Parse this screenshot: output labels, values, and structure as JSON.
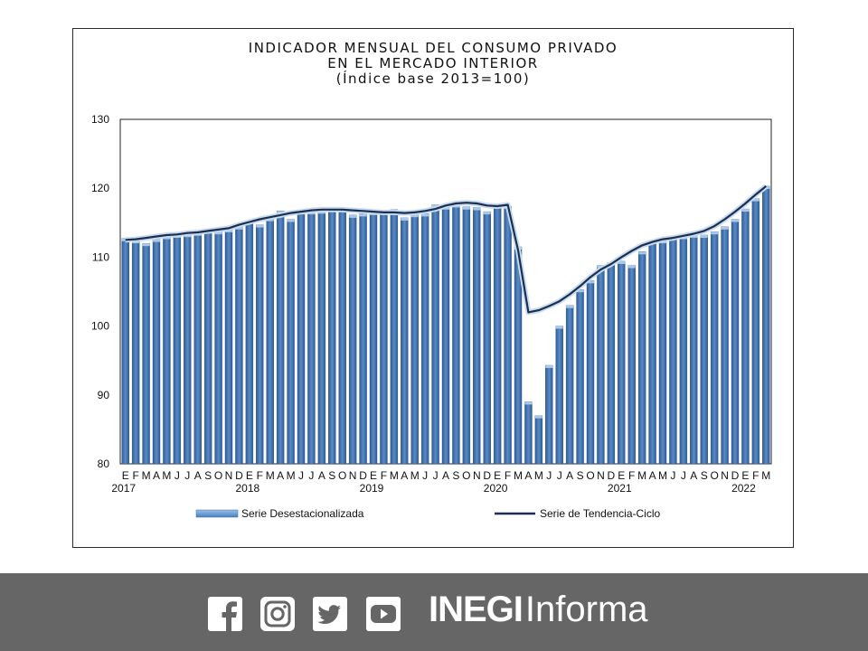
{
  "chart_data": {
    "type": "bar",
    "title_lines": [
      "INDICADOR MENSUAL DEL CONSUMO PRIVADO",
      "EN EL MERCADO INTERIOR",
      "(Índice base 2013=100)"
    ],
    "ylim": [
      80,
      130
    ],
    "yticks": [
      "130",
      "120",
      "110",
      "100",
      "90",
      "80"
    ],
    "month_letters": [
      "E",
      "F",
      "M",
      "A",
      "M",
      "J",
      "J",
      "A",
      "S",
      "O",
      "N",
      "D"
    ],
    "years": [
      "2017",
      "2018",
      "2019",
      "2020",
      "2021",
      "2022"
    ],
    "legend_position": "bottom",
    "categories": [
      "2017-01",
      "2017-02",
      "2017-03",
      "2017-04",
      "2017-05",
      "2017-06",
      "2017-07",
      "2017-08",
      "2017-09",
      "2017-10",
      "2017-11",
      "2017-12",
      "2018-01",
      "2018-02",
      "2018-03",
      "2018-04",
      "2018-05",
      "2018-06",
      "2018-07",
      "2018-08",
      "2018-09",
      "2018-10",
      "2018-11",
      "2018-12",
      "2019-01",
      "2019-02",
      "2019-03",
      "2019-04",
      "2019-05",
      "2019-06",
      "2019-07",
      "2019-08",
      "2019-09",
      "2019-10",
      "2019-11",
      "2019-12",
      "2020-01",
      "2020-02",
      "2020-03",
      "2020-04",
      "2020-05",
      "2020-06",
      "2020-07",
      "2020-08",
      "2020-09",
      "2020-10",
      "2020-11",
      "2020-12",
      "2021-01",
      "2021-02",
      "2021-03",
      "2021-04",
      "2021-05",
      "2021-06",
      "2021-07",
      "2021-08",
      "2021-09",
      "2021-10",
      "2021-11",
      "2021-12",
      "2022-01",
      "2022-02",
      "2022-03"
    ],
    "series": [
      {
        "name": "Serie Desestacionalizada",
        "kind": "bar",
        "color": "#3c6ca8",
        "values": [
          112.7,
          112.4,
          112.0,
          112.6,
          113.0,
          113.2,
          113.3,
          113.5,
          113.8,
          113.7,
          114.0,
          114.4,
          115.3,
          114.7,
          115.6,
          116.7,
          115.5,
          116.6,
          116.6,
          116.7,
          117.1,
          116.9,
          116.1,
          116.3,
          116.5,
          116.8,
          116.9,
          115.7,
          116.2,
          116.3,
          117.6,
          117.3,
          117.6,
          117.3,
          117.2,
          116.6,
          117.6,
          117.4,
          111.5,
          89.0,
          87.0,
          94.3,
          100.0,
          103.0,
          105.3,
          106.6,
          108.8,
          109.2,
          109.4,
          108.8,
          110.8,
          112.4,
          112.4,
          113.0,
          113.0,
          113.2,
          113.2,
          113.7,
          114.4,
          115.5,
          117.0,
          118.5,
          120.3
        ]
      },
      {
        "name": "Serie de Tendencia-Ciclo",
        "kind": "line",
        "color": "#1b2f52",
        "values": [
          112.5,
          112.6,
          112.8,
          113.0,
          113.2,
          113.3,
          113.5,
          113.6,
          113.8,
          114.0,
          114.2,
          114.7,
          115.1,
          115.5,
          115.8,
          116.1,
          116.4,
          116.6,
          116.8,
          116.9,
          116.9,
          116.9,
          116.8,
          116.7,
          116.6,
          116.5,
          116.5,
          116.4,
          116.5,
          116.7,
          117.0,
          117.5,
          117.8,
          117.9,
          117.8,
          117.5,
          117.4,
          117.6,
          111.0,
          102.0,
          102.3,
          102.9,
          103.6,
          104.6,
          105.8,
          107.1,
          108.2,
          109.0,
          110.0,
          110.9,
          111.7,
          112.2,
          112.6,
          112.8,
          113.1,
          113.4,
          113.8,
          114.5,
          115.5,
          116.6,
          117.8,
          119.1,
          120.3
        ]
      }
    ]
  },
  "footer": {
    "background": "#666666",
    "icons": [
      "facebook-icon",
      "instagram-icon",
      "twitter-icon",
      "youtube-icon"
    ],
    "brand_bold": "INEGI",
    "brand_light": "Informa"
  }
}
